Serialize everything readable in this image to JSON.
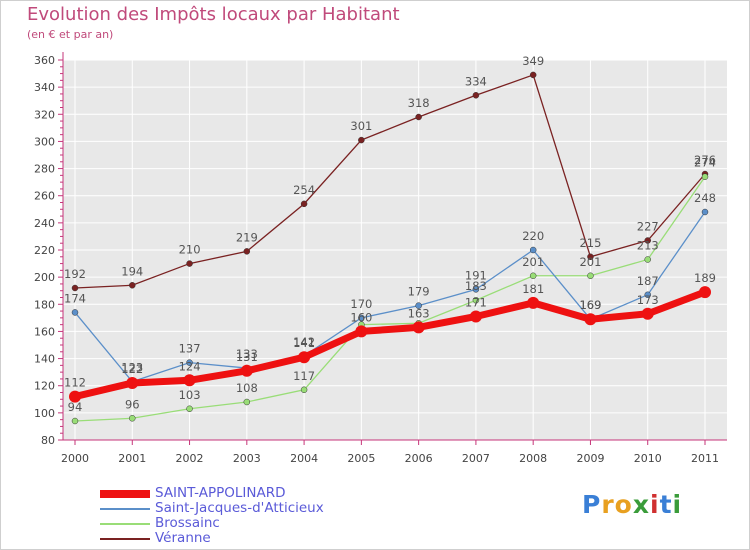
{
  "header": {
    "title": "Evolution des Impôts locaux par Habitant",
    "subtitle": "(en € et par an)"
  },
  "logo": {
    "letters": [
      "P",
      "r",
      "o",
      "x",
      "i",
      "t",
      "i"
    ],
    "colors": [
      "#3a7fd6",
      "#e8a020",
      "#e8a020",
      "#3a9c3a",
      "#d03030",
      "#3a7fd6",
      "#3a9c3a"
    ]
  },
  "chart_data": {
    "type": "line",
    "title": "Evolution des Impôts locaux par Habitant",
    "subtitle": "(en € et par an)",
    "xlabel": "",
    "ylabel": "",
    "x": [
      "2000",
      "2001",
      "2002",
      "2003",
      "2004",
      "2005",
      "2006",
      "2007",
      "2008",
      "2009",
      "2010",
      "2011"
    ],
    "ylim": [
      80,
      360
    ],
    "yticks": [
      80,
      100,
      120,
      140,
      160,
      180,
      200,
      220,
      240,
      260,
      280,
      300,
      320,
      340,
      360
    ],
    "grid": true,
    "legend_position": "bottom-left",
    "series": [
      {
        "name": "SAINT-APPOLINARD",
        "color": "#ee1111",
        "emphasis": true,
        "values": [
          112,
          122,
          124,
          131,
          141,
          160,
          163,
          171,
          181,
          169,
          173,
          189
        ],
        "labels": [
          "112",
          "122",
          "124",
          "131",
          "141",
          "160",
          "163",
          "171",
          "181",
          "169",
          "173",
          "189"
        ]
      },
      {
        "name": "Saint-Jacques-d'Atticieux",
        "color": "#5b8fc9",
        "emphasis": false,
        "values": [
          174,
          123,
          137,
          133,
          142,
          170,
          179,
          191,
          220,
          169,
          187,
          248
        ],
        "labels": [
          "174",
          "123",
          "137",
          "133",
          "142",
          "170",
          "179",
          "191",
          "220",
          "169",
          "187",
          "248"
        ]
      },
      {
        "name": "Brossainc",
        "color": "#99dd77",
        "emphasis": false,
        "values": [
          94,
          96,
          103,
          108,
          117,
          165,
          166,
          183,
          201,
          201,
          213,
          274
        ],
        "labels": [
          "94",
          "96",
          "103",
          "108",
          "117",
          "",
          "",
          "183",
          "201",
          "201",
          "213",
          "274"
        ]
      },
      {
        "name": "Véranne",
        "color": "#7a2222",
        "emphasis": false,
        "values": [
          192,
          194,
          210,
          219,
          254,
          301,
          318,
          334,
          349,
          215,
          227,
          276
        ],
        "labels": [
          "192",
          "194",
          "210",
          "219",
          "254",
          "301",
          "318",
          "334",
          "349",
          "215",
          "227",
          "276"
        ]
      }
    ]
  }
}
